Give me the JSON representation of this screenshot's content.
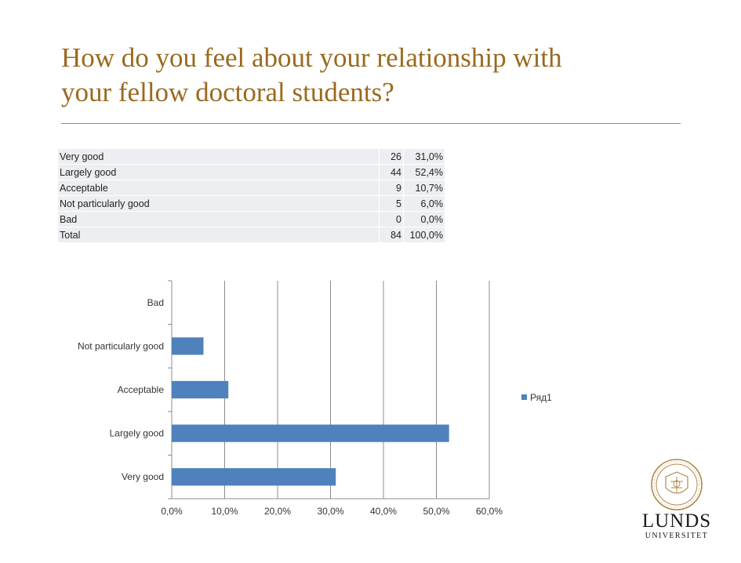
{
  "slide": {
    "title_line1": "How do you feel about your relationship with",
    "title_line2": "your fellow doctoral students?"
  },
  "table": {
    "rows": [
      {
        "label": "Very good",
        "count": "26",
        "percent": "31,0%"
      },
      {
        "label": "Largely good",
        "count": "44",
        "percent": "52,4%"
      },
      {
        "label": "Acceptable",
        "count": "9",
        "percent": "10,7%"
      },
      {
        "label": "Not particularly good",
        "count": "5",
        "percent": "6,0%"
      },
      {
        "label": "Bad",
        "count": "0",
        "percent": "0,0%"
      },
      {
        "label": "Total",
        "count": "84",
        "percent": "100,0%"
      }
    ]
  },
  "chart_data": {
    "type": "bar",
    "orientation": "horizontal",
    "categories": [
      "Very good",
      "Largely good",
      "Acceptable",
      "Not particularly good",
      "Bad"
    ],
    "series": [
      {
        "name": "Ряд1",
        "values": [
          31.0,
          52.4,
          10.7,
          6.0,
          0.0
        ],
        "color": "#4f81bd"
      }
    ],
    "xlim": [
      0,
      60
    ],
    "x_ticks": [
      "0,0%",
      "10,0%",
      "20,0%",
      "30,0%",
      "40,0%",
      "50,0%",
      "60,0%"
    ],
    "grid": true,
    "legend_position": "right"
  },
  "logo": {
    "name_line1": "LUNDS",
    "name_line2": "UNIVERSITET",
    "color": "#b08a4a"
  }
}
